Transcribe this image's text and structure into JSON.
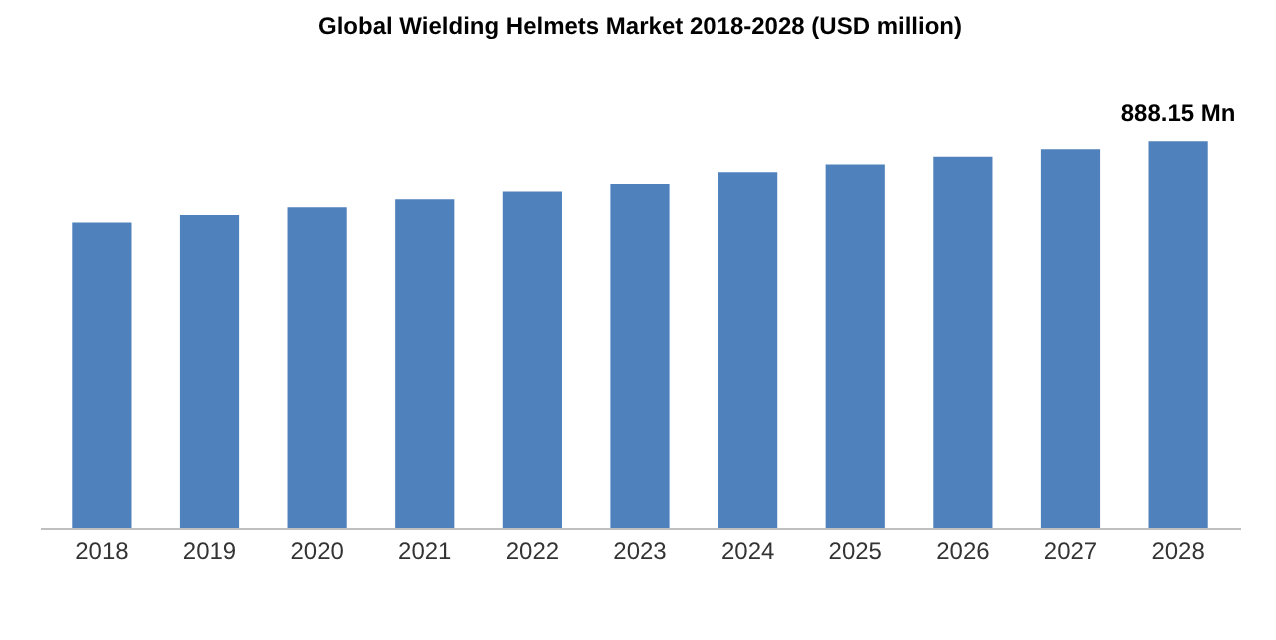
{
  "chart_data": {
    "type": "bar",
    "title": "Global Wielding Helmets Market 2018-2028 (USD million)",
    "categories": [
      "2018",
      "2019",
      "2020",
      "2021",
      "2022",
      "2023",
      "2024",
      "2025",
      "2026",
      "2027",
      "2028"
    ],
    "series": [
      {
        "color": "#4f81bd",
        "values": [
          702,
          719,
          737,
          755,
          773,
          790,
          817,
          835,
          853,
          870,
          888.15
        ],
        "value_labels": [
          null,
          null,
          null,
          null,
          null,
          null,
          null,
          null,
          null,
          null,
          "888.15 Mn"
        ]
      }
    ]
  }
}
